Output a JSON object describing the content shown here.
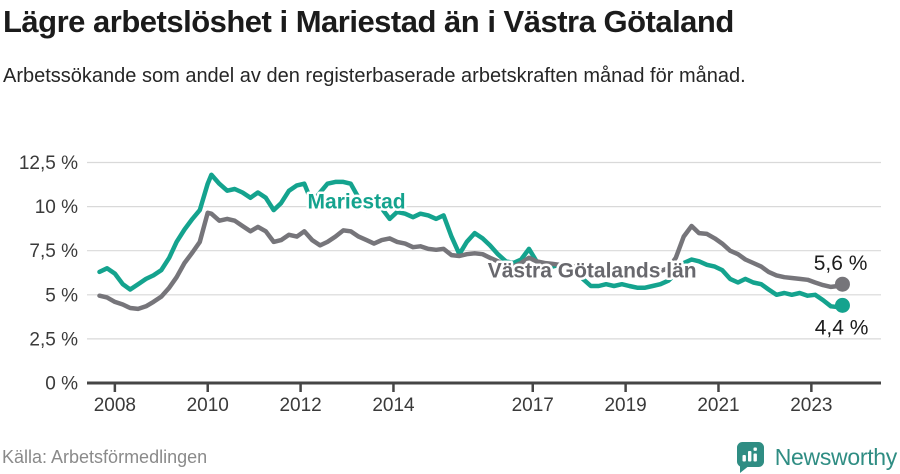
{
  "title": "Lägre arbetslöshet i Mariestad än i Västra Götaland",
  "subtitle": "Arbetssökande som andel av den registerbaserade arbetskraften månad för månad.",
  "footer": {
    "source": "Källa: Arbetsförmedlingen",
    "brand": "Newsworthy",
    "logo_icon": "newsworthy-speech-bubble-bar-chart"
  },
  "colors": {
    "mariestad": "#14a38e",
    "vastra_gotaland": "#76757a",
    "vastra_gotaland_label": "#68686d",
    "grid": "#d9d9d9",
    "axis": "#454545",
    "tick_text": "#3a3a3a",
    "value_text": "#1c1c1c",
    "brand_teal": "#2f8d83"
  },
  "chart_data": {
    "type": "line",
    "title": "Lägre arbetslöshet i Mariestad än i Västra Götaland",
    "xlabel": "",
    "ylabel": "",
    "grid": "horizontal",
    "legend": "inline-labels",
    "xlim": [
      2007.4,
      2024.5
    ],
    "ylim": [
      0,
      12.5
    ],
    "x_ticks": [
      2008,
      2010,
      2012,
      2014,
      2017,
      2019,
      2021,
      2023
    ],
    "x_tick_labels": [
      "2008",
      "2010",
      "2012",
      "2014",
      "2017",
      "2019",
      "2021",
      "2023"
    ],
    "y_ticks": [
      0,
      2.5,
      5,
      7.5,
      10,
      12.5
    ],
    "y_tick_labels": [
      "0 %",
      "2,5 %",
      "5 %",
      "7,5 %",
      "10 %",
      "12,5 %"
    ],
    "x": [
      2007.67,
      2007.83,
      2008.0,
      2008.17,
      2008.33,
      2008.5,
      2008.67,
      2008.83,
      2009.0,
      2009.17,
      2009.33,
      2009.5,
      2009.67,
      2009.83,
      2010.0,
      2010.08,
      2010.25,
      2010.42,
      2010.58,
      2010.75,
      2010.92,
      2011.08,
      2011.25,
      2011.42,
      2011.58,
      2011.75,
      2011.92,
      2012.08,
      2012.25,
      2012.42,
      2012.58,
      2012.75,
      2012.92,
      2013.08,
      2013.25,
      2013.42,
      2013.58,
      2013.75,
      2013.92,
      2014.08,
      2014.25,
      2014.42,
      2014.58,
      2014.75,
      2014.92,
      2015.08,
      2015.25,
      2015.42,
      2015.58,
      2015.75,
      2015.92,
      2016.08,
      2016.25,
      2016.42,
      2016.58,
      2016.75,
      2016.92,
      2017.08,
      2017.25,
      2017.42,
      2017.58,
      2017.75,
      2017.92,
      2018.08,
      2018.25,
      2018.42,
      2018.58,
      2018.75,
      2018.92,
      2019.08,
      2019.25,
      2019.42,
      2019.58,
      2019.75,
      2019.92,
      2020.08,
      2020.25,
      2020.42,
      2020.58,
      2020.75,
      2020.92,
      2021.08,
      2021.25,
      2021.42,
      2021.58,
      2021.75,
      2021.92,
      2022.08,
      2022.25,
      2022.42,
      2022.58,
      2022.75,
      2022.92,
      2023.08,
      2023.25,
      2023.42,
      2023.58,
      2023.67
    ],
    "series": [
      {
        "name": "Mariestad",
        "color_key": "mariestad",
        "end_label": "4,4 %",
        "end_label_offset": {
          "dx": 26,
          "dy": 29
        },
        "values": [
          6.3,
          6.5,
          6.2,
          5.6,
          5.3,
          5.6,
          5.9,
          6.1,
          6.4,
          7.1,
          8.0,
          8.7,
          9.3,
          9.8,
          11.3,
          11.8,
          11.3,
          10.9,
          11.0,
          10.8,
          10.5,
          10.8,
          10.5,
          9.8,
          10.2,
          10.9,
          11.2,
          11.3,
          10.2,
          10.8,
          11.3,
          11.4,
          11.4,
          11.3,
          10.5,
          9.9,
          10.2,
          9.9,
          9.3,
          9.7,
          9.6,
          9.4,
          9.6,
          9.5,
          9.3,
          9.5,
          8.3,
          7.3,
          8.0,
          8.5,
          8.2,
          7.8,
          7.3,
          6.9,
          6.8,
          7.0,
          7.6,
          6.9,
          6.7,
          6.6,
          6.7,
          6.6,
          6.4,
          5.9,
          5.5,
          5.5,
          5.6,
          5.5,
          5.6,
          5.5,
          5.4,
          5.4,
          5.5,
          5.6,
          5.8,
          6.2,
          6.8,
          7.0,
          6.9,
          6.7,
          6.6,
          6.4,
          5.9,
          5.7,
          5.9,
          5.7,
          5.6,
          5.3,
          5.0,
          5.1,
          5.0,
          5.1,
          4.95,
          5.0,
          4.7,
          4.35,
          4.3,
          4.4
        ]
      },
      {
        "name": "Västra Götalands län",
        "color_key": "vastra_gotaland",
        "end_label": "5,6 %",
        "end_label_offset": {
          "dx": 25,
          "dy": -14
        },
        "values": [
          4.95,
          4.85,
          4.6,
          4.45,
          4.25,
          4.2,
          4.35,
          4.6,
          4.9,
          5.4,
          6.0,
          6.8,
          7.4,
          8.0,
          9.65,
          9.6,
          9.2,
          9.3,
          9.2,
          8.9,
          8.6,
          8.85,
          8.6,
          8.0,
          8.1,
          8.4,
          8.3,
          8.6,
          8.1,
          7.8,
          8.0,
          8.3,
          8.65,
          8.6,
          8.3,
          8.1,
          7.9,
          8.1,
          8.2,
          8.0,
          7.9,
          7.7,
          7.75,
          7.6,
          7.55,
          7.6,
          7.25,
          7.2,
          7.3,
          7.35,
          7.3,
          7.1,
          6.9,
          6.7,
          6.6,
          6.8,
          7.1,
          6.9,
          6.8,
          6.75,
          6.7,
          6.65,
          6.6,
          6.55,
          6.5,
          6.45,
          6.4,
          6.4,
          6.35,
          6.3,
          6.3,
          6.25,
          6.3,
          6.35,
          6.5,
          7.1,
          8.3,
          8.9,
          8.5,
          8.45,
          8.2,
          7.9,
          7.5,
          7.3,
          7.0,
          6.8,
          6.6,
          6.3,
          6.1,
          6.0,
          5.95,
          5.9,
          5.85,
          5.7,
          5.55,
          5.45,
          5.5,
          5.6
        ]
      }
    ],
    "inline_labels": [
      {
        "series": "Mariestad",
        "text": "Mariestad",
        "x": 2012.15,
        "y": 9.9,
        "color_key": "mariestad"
      },
      {
        "series": "Västra Götalands län",
        "text": "Västra Götalands län",
        "x": 2016.03,
        "y": 5.98,
        "color_key": "vastra_gotaland_label"
      }
    ]
  }
}
